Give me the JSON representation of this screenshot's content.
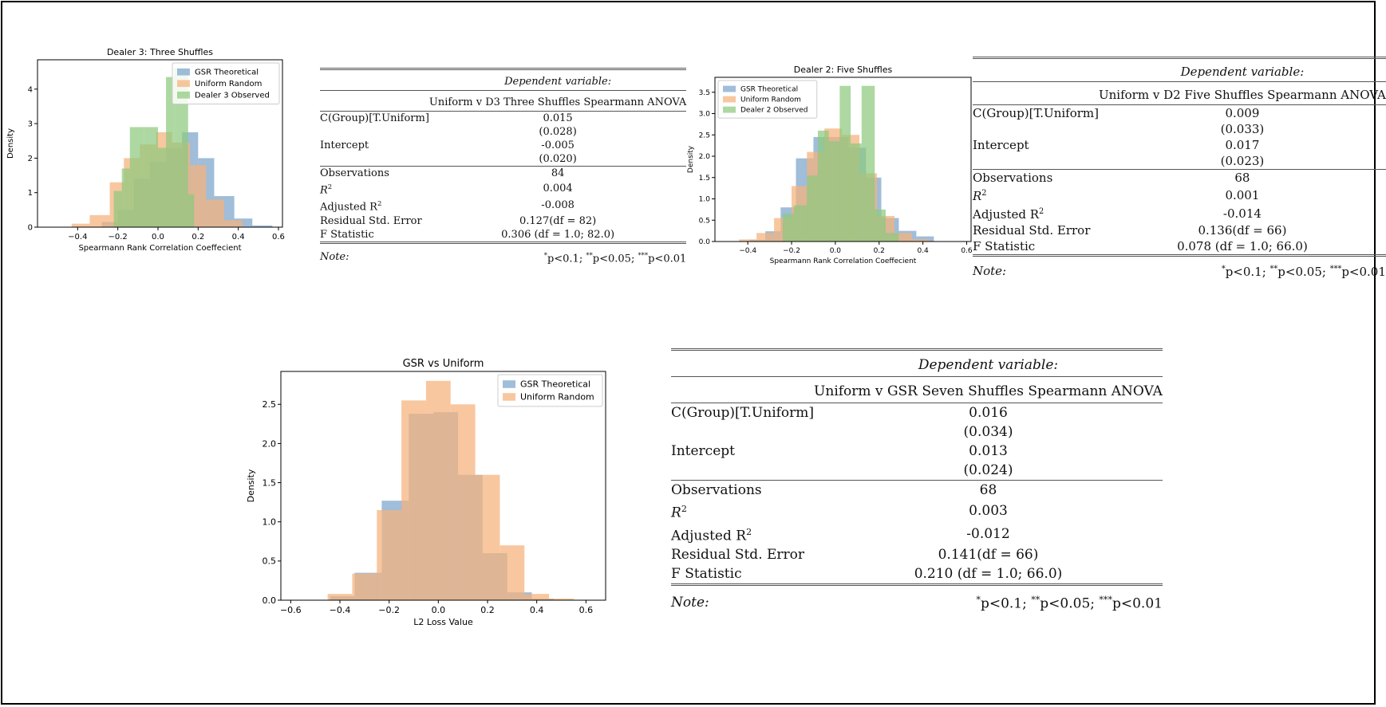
{
  "colors": {
    "gsr": "#7ba3cc",
    "uniform": "#f5b27a",
    "observed": "#8ec97e",
    "border": "#000000"
  },
  "charts": [
    {
      "id": "d3",
      "chart_data": {
        "type": "bar",
        "title": "Dealer 3: Three Shuffles",
        "xlabel": "Spearmann Rank Correlation Coeffecient",
        "ylabel": "Density",
        "xlim": [
          -0.6,
          0.62
        ],
        "ylim": [
          0,
          4.85
        ],
        "xticks": [
          -0.4,
          -0.2,
          0.0,
          0.2,
          0.4,
          0.6
        ],
        "xtick_labels": [
          "−0.4",
          "−0.2",
          "0.0",
          "0.2",
          "0.4",
          "0.6"
        ],
        "yticks": [
          0,
          1,
          2,
          3,
          4
        ],
        "ytick_labels": [
          "0",
          "1",
          "2",
          "3",
          "4"
        ],
        "legend_position": "top-right",
        "series": [
          {
            "name": "GSR Theoretical",
            "color": "#7ba3cc",
            "bins": [
              [
                -0.28,
                -0.2,
                0.15
              ],
              [
                -0.2,
                -0.12,
                0.5
              ],
              [
                -0.12,
                -0.04,
                1.4
              ],
              [
                -0.04,
                0.04,
                1.9
              ],
              [
                0.04,
                0.12,
                2.3
              ],
              [
                0.12,
                0.2,
                2.75
              ],
              [
                0.2,
                0.28,
                2.0
              ],
              [
                0.28,
                0.38,
                0.9
              ],
              [
                0.38,
                0.47,
                0.25
              ],
              [
                0.47,
                0.57,
                0.05
              ]
            ]
          },
          {
            "name": "Uniform Random",
            "color": "#f5b27a",
            "bins": [
              [
                -0.43,
                -0.34,
                0.1
              ],
              [
                -0.34,
                -0.24,
                0.35
              ],
              [
                -0.24,
                -0.17,
                1.3
              ],
              [
                -0.17,
                -0.09,
                2.0
              ],
              [
                -0.09,
                -0.01,
                2.4
              ],
              [
                -0.01,
                0.07,
                2.75
              ],
              [
                0.07,
                0.16,
                2.45
              ],
              [
                0.16,
                0.24,
                1.8
              ],
              [
                0.24,
                0.33,
                0.8
              ],
              [
                0.33,
                0.42,
                0.2
              ]
            ]
          },
          {
            "name": "Dealer 3 Observed",
            "color": "#8ec97e",
            "bins": [
              [
                -0.22,
                -0.18,
                1.05
              ],
              [
                -0.18,
                -0.14,
                1.7
              ],
              [
                -0.14,
                -0.07,
                2.9
              ],
              [
                -0.07,
                0.0,
                2.9
              ],
              [
                0.0,
                0.04,
                2.3
              ],
              [
                0.04,
                0.08,
                4.35
              ],
              [
                0.08,
                0.15,
                4.6
              ],
              [
                0.15,
                0.18,
                0.95
              ]
            ]
          }
        ]
      }
    },
    {
      "id": "d2",
      "chart_data": {
        "type": "bar",
        "title": "Dealer 2: Five Shuffles",
        "xlabel": "Spearmann Rank Correlation Coeffecient",
        "ylabel": "Density",
        "xlim": [
          -0.55,
          0.62
        ],
        "ylim": [
          0,
          3.85
        ],
        "xticks": [
          -0.4,
          -0.2,
          0.0,
          0.2,
          0.4,
          0.6
        ],
        "xtick_labels": [
          "−0.4",
          "−0.2",
          "0.0",
          "0.2",
          "0.4",
          "0.6"
        ],
        "yticks": [
          0.0,
          0.5,
          1.0,
          1.5,
          2.0,
          2.5,
          3.0,
          3.5
        ],
        "ytick_labels": [
          "0.0",
          "0.5",
          "1.0",
          "1.5",
          "2.0",
          "2.5",
          "3.0",
          "3.5"
        ],
        "legend_position": "top-left",
        "series": [
          {
            "name": "GSR Theoretical",
            "color": "#7ba3cc",
            "bins": [
              [
                -0.39,
                -0.32,
                0.04
              ],
              [
                -0.32,
                -0.25,
                0.24
              ],
              [
                -0.25,
                -0.18,
                0.8
              ],
              [
                -0.18,
                -0.1,
                1.95
              ],
              [
                -0.1,
                -0.02,
                2.45
              ],
              [
                -0.02,
                0.06,
                2.45
              ],
              [
                0.06,
                0.14,
                2.2
              ],
              [
                0.14,
                0.21,
                1.5
              ],
              [
                0.21,
                0.29,
                0.55
              ],
              [
                0.29,
                0.37,
                0.25
              ],
              [
                0.37,
                0.45,
                0.12
              ]
            ]
          },
          {
            "name": "Uniform Random",
            "color": "#f5b27a",
            "bins": [
              [
                -0.44,
                -0.36,
                0.05
              ],
              [
                -0.36,
                -0.28,
                0.2
              ],
              [
                -0.28,
                -0.2,
                0.55
              ],
              [
                -0.2,
                -0.13,
                1.3
              ],
              [
                -0.13,
                -0.05,
                2.1
              ],
              [
                -0.05,
                0.03,
                2.65
              ],
              [
                0.03,
                0.11,
                2.5
              ],
              [
                0.11,
                0.19,
                1.6
              ],
              [
                0.19,
                0.27,
                0.6
              ],
              [
                0.27,
                0.35,
                0.2
              ],
              [
                0.35,
                0.43,
                0.05
              ]
            ]
          },
          {
            "name": "Dealer 2 Observed",
            "color": "#8ec97e",
            "bins": [
              [
                -0.24,
                -0.19,
                0.65
              ],
              [
                -0.19,
                -0.13,
                0.85
              ],
              [
                -0.13,
                -0.08,
                1.55
              ],
              [
                -0.08,
                -0.03,
                2.6
              ],
              [
                -0.03,
                0.02,
                2.35
              ],
              [
                0.02,
                0.07,
                3.65
              ],
              [
                0.07,
                0.12,
                2.3
              ],
              [
                0.12,
                0.18,
                3.65
              ],
              [
                0.18,
                0.23,
                0.75
              ],
              [
                0.23,
                0.29,
                0.2
              ]
            ]
          }
        ]
      }
    },
    {
      "id": "gsr",
      "chart_data": {
        "type": "bar",
        "title": "GSR vs Uniform",
        "xlabel": "L2 Loss Value",
        "ylabel": "Density",
        "xlim": [
          -0.64,
          0.68
        ],
        "ylim": [
          0,
          2.92
        ],
        "xticks": [
          -0.6,
          -0.4,
          -0.2,
          0.0,
          0.2,
          0.4,
          0.6
        ],
        "xtick_labels": [
          "−0.6",
          "−0.4",
          "−0.2",
          "0.0",
          "0.2",
          "0.4",
          "0.6"
        ],
        "yticks": [
          0.0,
          0.5,
          1.0,
          1.5,
          2.0,
          2.5
        ],
        "ytick_labels": [
          "0.0",
          "0.5",
          "1.0",
          "1.5",
          "2.0",
          "2.5"
        ],
        "legend_position": "top-right",
        "series": [
          {
            "name": "GSR Theoretical",
            "color": "#7ba3cc",
            "bins": [
              [
                -0.44,
                -0.34,
                0.05
              ],
              [
                -0.34,
                -0.23,
                0.35
              ],
              [
                -0.23,
                -0.12,
                1.27
              ],
              [
                -0.12,
                -0.02,
                2.38
              ],
              [
                -0.02,
                0.08,
                2.4
              ],
              [
                0.08,
                0.18,
                1.6
              ],
              [
                0.18,
                0.28,
                0.6
              ],
              [
                0.28,
                0.38,
                0.1
              ],
              [
                0.38,
                0.47,
                0.02
              ]
            ]
          },
          {
            "name": "Uniform Random",
            "color": "#f5b27a",
            "bins": [
              [
                -0.45,
                -0.35,
                0.08
              ],
              [
                -0.35,
                -0.25,
                0.34
              ],
              [
                -0.25,
                -0.15,
                1.15
              ],
              [
                -0.15,
                -0.05,
                2.55
              ],
              [
                -0.05,
                0.05,
                2.8
              ],
              [
                0.05,
                0.15,
                2.5
              ],
              [
                0.15,
                0.25,
                1.6
              ],
              [
                0.25,
                0.35,
                0.7
              ],
              [
                0.35,
                0.45,
                0.08
              ],
              [
                0.45,
                0.55,
                0.02
              ]
            ]
          }
        ]
      }
    }
  ],
  "tables": {
    "d3": {
      "dep_var": "Dependent variable:",
      "model": "Uniform v D3 Three Shuffles Spearmann ANOVA",
      "coef_label": "C(Group)[T.Uniform]",
      "coef": "0.015",
      "coef_se": "(0.028)",
      "int_label": "Intercept",
      "int": "-0.005",
      "int_se": "(0.020)",
      "obs_label": "Observations",
      "obs": "84",
      "r2_label": "R",
      "r2": "0.004",
      "adjr2_label": "Adjusted R",
      "adjr2": "-0.008",
      "rse_label": "Residual Std. Error",
      "rse": "0.127(df = 82)",
      "f_label": "F Statistic",
      "f": "0.306 (df = 1.0; 82.0)",
      "note_label": "Note:",
      "n1": "p<0.1; ",
      "n2": "p<0.05; ",
      "n3": "p<0.01"
    },
    "d2": {
      "dep_var": "Dependent variable:",
      "model": "Uniform v D2 Five Shuffles Spearmann ANOVA",
      "coef_label": "C(Group)[T.Uniform]",
      "coef": "0.009",
      "coef_se": "(0.033)",
      "int_label": "Intercept",
      "int": "0.017",
      "int_se": "(0.023)",
      "obs_label": "Observations",
      "obs": "68",
      "r2_label": "R",
      "r2": "0.001",
      "adjr2_label": "Adjusted R",
      "adjr2": "-0.014",
      "rse_label": "Residual Std. Error",
      "rse": "0.136(df = 66)",
      "f_label": "F Statistic",
      "f": "0.078 (df = 1.0; 66.0)",
      "note_label": "Note:",
      "n1": "p<0.1; ",
      "n2": "p<0.05; ",
      "n3": "p<0.01"
    },
    "gsr": {
      "dep_var": "Dependent variable:",
      "model": "Uniform v GSR Seven Shuffles Spearmann ANOVA",
      "coef_label": "C(Group)[T.Uniform]",
      "coef": "0.016",
      "coef_se": "(0.034)",
      "int_label": "Intercept",
      "int": "0.013",
      "int_se": "(0.024)",
      "obs_label": "Observations",
      "obs": "68",
      "r2_label": "R",
      "r2": "0.003",
      "adjr2_label": "Adjusted R",
      "adjr2": "-0.012",
      "rse_label": "Residual Std. Error",
      "rse": "0.141(df = 66)",
      "f_label": "F Statistic",
      "f": "0.210 (df = 1.0; 66.0)",
      "note_label": "Note:",
      "n1": "p<0.1; ",
      "n2": "p<0.05; ",
      "n3": "p<0.01"
    }
  }
}
